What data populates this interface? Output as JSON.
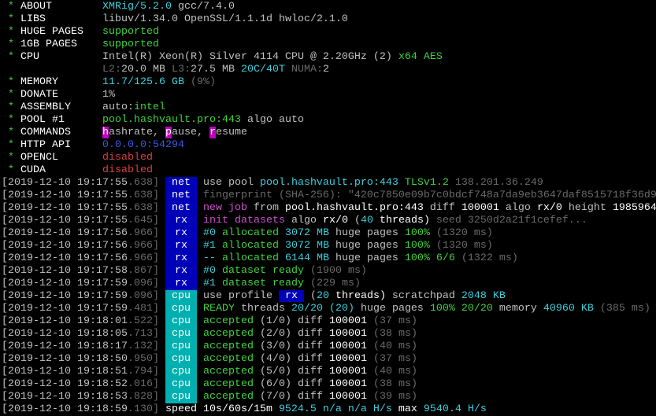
{
  "colors": {
    "tag_net": "#0000b8",
    "tag_rx": "#0000b8",
    "tag_cpu": "#00b0b0",
    "accent_cyan": "#3ccfdc",
    "accent_green": "#3fd23f"
  },
  "header": [
    {
      "label": "ABOUT",
      "segs": [
        [
          "XMRig/5.2.0",
          "c"
        ],
        [
          " gcc/7.4.0",
          "w"
        ]
      ]
    },
    {
      "label": "LIBS",
      "segs": [
        [
          "libuv/1.34.0 OpenSSL/1.1.1d hwloc/2.1.0",
          "w"
        ]
      ]
    },
    {
      "label": "HUGE PAGES",
      "segs": [
        [
          "supported",
          "g"
        ]
      ]
    },
    {
      "label": "1GB PAGES",
      "segs": [
        [
          "supported",
          "g"
        ]
      ]
    },
    {
      "label": "CPU",
      "segs": [
        [
          "Intel(R) Xeon(R) Silver 4114 CPU @ 2.20GHz (2) ",
          "w"
        ],
        [
          "x64 AES",
          "g"
        ]
      ]
    },
    {
      "label": "",
      "segs": [
        [
          "L2:",
          "G"
        ],
        [
          "20.0 MB ",
          "w"
        ],
        [
          "L3:",
          "G"
        ],
        [
          "27.5 MB ",
          "w"
        ],
        [
          "20C/40T ",
          "c"
        ],
        [
          "NUMA:",
          "G"
        ],
        [
          "2",
          "w"
        ]
      ]
    },
    {
      "label": "MEMORY",
      "segs": [
        [
          "11.7/125.6 GB ",
          "c"
        ],
        [
          "(9%)",
          "G"
        ]
      ]
    },
    {
      "label": "DONATE",
      "segs": [
        [
          "1%",
          "w"
        ]
      ]
    },
    {
      "label": "ASSEMBLY",
      "segs": [
        [
          "auto:",
          "w"
        ],
        [
          "intel",
          "g"
        ]
      ]
    },
    {
      "label": "POOL #1",
      "segs": [
        [
          "pool.hashvault.pro:443",
          "g"
        ],
        [
          " algo auto",
          "w"
        ]
      ]
    },
    {
      "label": "COMMANDS",
      "segs": [
        [
          "h",
          "hl"
        ],
        [
          "ashrate, ",
          "w"
        ],
        [
          "p",
          "hl"
        ],
        [
          "ause, ",
          "w"
        ],
        [
          "r",
          "hl"
        ],
        [
          "esume",
          "w"
        ]
      ]
    },
    {
      "label": "HTTP API",
      "segs": [
        [
          "0.0.0.0:54294",
          "b"
        ]
      ]
    },
    {
      "label": "OPENCL",
      "segs": [
        [
          "disabled",
          "r"
        ]
      ]
    },
    {
      "label": "CUDA",
      "segs": [
        [
          "disabled",
          "r"
        ]
      ]
    }
  ],
  "log": [
    {
      "ts": "2019-12-10 19:17:55",
      "ms": ".638",
      "tag": "net",
      "segs": [
        [
          "use pool ",
          "w"
        ],
        [
          "pool.hashvault.pro:443 ",
          "c"
        ],
        [
          "TLSv1.2 ",
          "g"
        ],
        [
          "138.201.36.249",
          "G"
        ]
      ]
    },
    {
      "ts": "2019-12-10 19:17:55",
      "ms": ".638",
      "tag": "net",
      "segs": [
        [
          "fingerprint (SHA-256): \"420c7850e09b7c0bdcf748a7da9eb3647daf8515718f36d9",
          "G"
        ]
      ]
    },
    {
      "ts": "2019-12-10 19:17:55",
      "ms": ".638",
      "tag": "net",
      "segs": [
        [
          "new job",
          "m"
        ],
        [
          " from ",
          "w"
        ],
        [
          "pool.hashvault.pro:443",
          "W"
        ],
        [
          " diff ",
          "w"
        ],
        [
          "100001",
          "W"
        ],
        [
          " algo ",
          "w"
        ],
        [
          "rx/0",
          "W"
        ],
        [
          " height ",
          "w"
        ],
        [
          "1985964",
          "W"
        ]
      ]
    },
    {
      "ts": "2019-12-10 19:17:55",
      "ms": ".645",
      "tag": "rx",
      "segs": [
        [
          "init datasets",
          "m"
        ],
        [
          " algo ",
          "w"
        ],
        [
          "rx/0",
          "W"
        ],
        [
          " (",
          "w"
        ],
        [
          "40",
          "c"
        ],
        [
          " threads)",
          "W"
        ],
        [
          " seed 3250d2a21f1cefef...",
          "G"
        ]
      ]
    },
    {
      "ts": "2019-12-10 19:17:56",
      "ms": ".966",
      "tag": "rx",
      "segs": [
        [
          "#0",
          "c"
        ],
        [
          " allocated ",
          "g"
        ],
        [
          "3072 MB",
          "c"
        ],
        [
          " huge pages ",
          "w"
        ],
        [
          "100%",
          "g"
        ],
        [
          " (1320 ms)",
          "G"
        ]
      ]
    },
    {
      "ts": "2019-12-10 19:17:56",
      "ms": ".966",
      "tag": "rx",
      "segs": [
        [
          "#1",
          "c"
        ],
        [
          " allocated ",
          "g"
        ],
        [
          "3072 MB",
          "c"
        ],
        [
          " huge pages ",
          "w"
        ],
        [
          "100%",
          "g"
        ],
        [
          " (1320 ms)",
          "G"
        ]
      ]
    },
    {
      "ts": "2019-12-10 19:17:56",
      "ms": ".966",
      "tag": "rx",
      "segs": [
        [
          "--",
          "c"
        ],
        [
          " allocated ",
          "g"
        ],
        [
          "6144 MB",
          "c"
        ],
        [
          " huge pages ",
          "w"
        ],
        [
          "100% 6/6",
          "g"
        ],
        [
          " (1322 ms)",
          "G"
        ]
      ]
    },
    {
      "ts": "2019-12-10 19:17:58",
      "ms": ".867",
      "tag": "rx",
      "segs": [
        [
          "#0",
          "c"
        ],
        [
          " dataset ready",
          "g"
        ],
        [
          " (1900 ms)",
          "G"
        ]
      ]
    },
    {
      "ts": "2019-12-10 19:17:59",
      "ms": ".096",
      "tag": "rx",
      "segs": [
        [
          "#1",
          "c"
        ],
        [
          " dataset ready",
          "g"
        ],
        [
          " (229 ms)",
          "G"
        ]
      ]
    },
    {
      "ts": "2019-12-10 19:17:59",
      "ms": ".096",
      "tag": "cpu",
      "segs": [
        [
          "use profile ",
          "w"
        ],
        [
          " rx ",
          "rb"
        ],
        [
          " (",
          "w"
        ],
        [
          "20",
          "c"
        ],
        [
          " threads)",
          "W"
        ],
        [
          " scratchpad ",
          "w"
        ],
        [
          "2048 KB",
          "c"
        ]
      ]
    },
    {
      "ts": "2019-12-10 19:17:59",
      "ms": ".481",
      "tag": "cpu",
      "segs": [
        [
          "READY",
          "g"
        ],
        [
          " threads ",
          "w"
        ],
        [
          "20/20",
          "c"
        ],
        [
          " (20)",
          "c"
        ],
        [
          " huge pages ",
          "w"
        ],
        [
          "100% 20/20",
          "g"
        ],
        [
          " memory ",
          "w"
        ],
        [
          "40960 KB",
          "c"
        ],
        [
          " (385 ms)",
          "G"
        ]
      ]
    },
    {
      "ts": "2019-12-10 19:18:01",
      "ms": ".522",
      "tag": "cpu",
      "segs": [
        [
          "accepted",
          "g"
        ],
        [
          " (1/0)",
          "w"
        ],
        [
          " diff ",
          "w"
        ],
        [
          "100001",
          "W"
        ],
        [
          " (37 ms)",
          "G"
        ]
      ]
    },
    {
      "ts": "2019-12-10 19:18:05",
      "ms": ".713",
      "tag": "cpu",
      "segs": [
        [
          "accepted",
          "g"
        ],
        [
          " (2/0)",
          "w"
        ],
        [
          " diff ",
          "w"
        ],
        [
          "100001",
          "W"
        ],
        [
          " (38 ms)",
          "G"
        ]
      ]
    },
    {
      "ts": "2019-12-10 19:18:17",
      "ms": ".132",
      "tag": "cpu",
      "segs": [
        [
          "accepted",
          "g"
        ],
        [
          " (3/0)",
          "w"
        ],
        [
          " diff ",
          "w"
        ],
        [
          "100001",
          "W"
        ],
        [
          " (40 ms)",
          "G"
        ]
      ]
    },
    {
      "ts": "2019-12-10 19:18:50",
      "ms": ".950",
      "tag": "cpu",
      "segs": [
        [
          "accepted",
          "g"
        ],
        [
          " (4/0)",
          "w"
        ],
        [
          " diff ",
          "w"
        ],
        [
          "100001",
          "W"
        ],
        [
          " (37 ms)",
          "G"
        ]
      ]
    },
    {
      "ts": "2019-12-10 19:18:51",
      "ms": ".794",
      "tag": "cpu",
      "segs": [
        [
          "accepted",
          "g"
        ],
        [
          " (5/0)",
          "w"
        ],
        [
          " diff ",
          "w"
        ],
        [
          "100001",
          "W"
        ],
        [
          " (40 ms)",
          "G"
        ]
      ]
    },
    {
      "ts": "2019-12-10 19:18:52",
      "ms": ".016",
      "tag": "cpu",
      "segs": [
        [
          "accepted",
          "g"
        ],
        [
          " (6/0)",
          "w"
        ],
        [
          " diff ",
          "w"
        ],
        [
          "100001",
          "W"
        ],
        [
          " (38 ms)",
          "G"
        ]
      ]
    },
    {
      "ts": "2019-12-10 19:18:53",
      "ms": ".828",
      "tag": "cpu",
      "segs": [
        [
          "accepted",
          "g"
        ],
        [
          " (7/0)",
          "w"
        ],
        [
          " diff ",
          "w"
        ],
        [
          "100001",
          "W"
        ],
        [
          " (39 ms)",
          "G"
        ]
      ]
    },
    {
      "ts": "2019-12-10 19:18:59",
      "ms": ".130",
      "tag": "",
      "segs": [
        [
          "speed 10s/60s/15m ",
          "W"
        ],
        [
          "9524.5",
          "c"
        ],
        [
          " n/a n/a H/s",
          "c"
        ],
        [
          " max ",
          "W"
        ],
        [
          "9540.4 H/s",
          "c"
        ]
      ]
    }
  ]
}
